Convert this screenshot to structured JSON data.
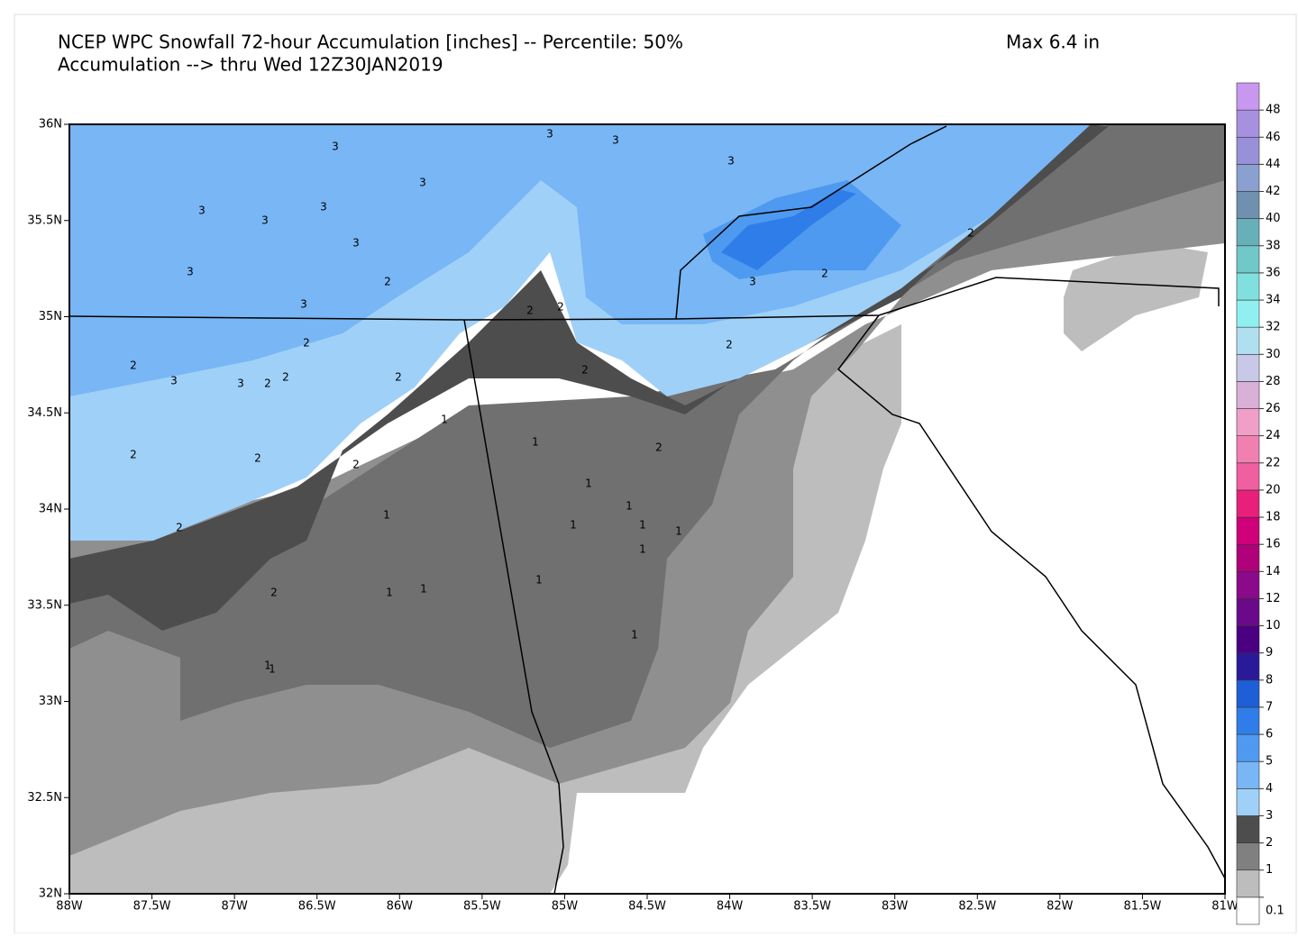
{
  "header": {
    "title": "NCEP WPC Snowfall 72-hour Accumulation [inches] -- Percentile: 50%",
    "subtitle": "Accumulation --> thru Wed 12Z30JAN2019",
    "max": "Max 6.4 in"
  },
  "map": {
    "latlim": [
      32,
      36
    ],
    "lonlim": [
      -88,
      -81
    ],
    "lat_ticks": [
      {
        "value": 36,
        "label": "36N"
      },
      {
        "value": 35.5,
        "label": "35.5N"
      },
      {
        "value": 35,
        "label": "35N"
      },
      {
        "value": 34.5,
        "label": "34.5N"
      },
      {
        "value": 34,
        "label": "34N"
      },
      {
        "value": 33.5,
        "label": "33.5N"
      },
      {
        "value": 33,
        "label": "33N"
      },
      {
        "value": 32.5,
        "label": "32.5N"
      },
      {
        "value": 32,
        "label": "32N"
      }
    ],
    "lon_ticks": [
      {
        "value": -88,
        "label": "88W"
      },
      {
        "value": -87.5,
        "label": "87.5W"
      },
      {
        "value": -87,
        "label": "87W"
      },
      {
        "value": -86.5,
        "label": "86.5W"
      },
      {
        "value": -86,
        "label": "86W"
      },
      {
        "value": -85.5,
        "label": "85.5W"
      },
      {
        "value": -85,
        "label": "85W"
      },
      {
        "value": -84.5,
        "label": "84.5W"
      },
      {
        "value": -84,
        "label": "84W"
      },
      {
        "value": -83.5,
        "label": "83.5W"
      },
      {
        "value": -83,
        "label": "83W"
      },
      {
        "value": -82.5,
        "label": "82.5W"
      },
      {
        "value": -82,
        "label": "82W"
      },
      {
        "value": -81.5,
        "label": "81.5W"
      },
      {
        "value": -81,
        "label": "81W"
      }
    ],
    "contour_labels": [
      3,
      3,
      3,
      3,
      3,
      3,
      3,
      3,
      3,
      3,
      3,
      3,
      3,
      3,
      2,
      2,
      2,
      2,
      2,
      2,
      2,
      2,
      2,
      2,
      2,
      2,
      2,
      2,
      2,
      2,
      2,
      2,
      1,
      1,
      1,
      1,
      1,
      1,
      1,
      1,
      1,
      1,
      1,
      1,
      1,
      1,
      1
    ]
  },
  "colorbar": {
    "levels": [
      0.1,
      1,
      2,
      3,
      4,
      5,
      6,
      7,
      8,
      9,
      10,
      12,
      14,
      16,
      18,
      20,
      22,
      24,
      26,
      28,
      30,
      32,
      34,
      36,
      38,
      40,
      42,
      44,
      46,
      48
    ],
    "colors": [
      "#ffffff",
      "#bdbdbd",
      "#808080",
      "#4d4d4d",
      "#9fd0f8",
      "#78b6f5",
      "#4e9af0",
      "#2f7de8",
      "#1e5fd8",
      "#2a1a9a",
      "#4b0082",
      "#6a0a8a",
      "#8a0a8a",
      "#b0007a",
      "#d0007a",
      "#e8207a",
      "#f060a0",
      "#f080b0",
      "#f0a0c8",
      "#d8b0d8",
      "#c8c8e8",
      "#b0e0f0",
      "#90f0f0",
      "#80e0e0",
      "#70c8c8",
      "#68b0b8",
      "#7090b0",
      "#8aa0d0",
      "#9890d8",
      "#a890e0",
      "#c898f0"
    ]
  }
}
